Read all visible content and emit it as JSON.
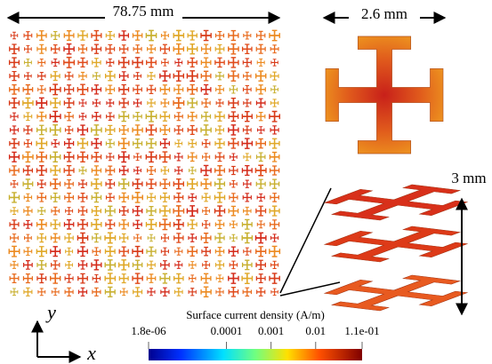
{
  "diagram": {
    "array_width": "78.75 mm",
    "cell_width": "2.6 mm",
    "stack_height": "3 mm",
    "axis_y": "y",
    "axis_x": "x"
  },
  "colorbar": {
    "title": "Surface current density (A/m)",
    "log": true,
    "lim": [
      1.8e-06,
      0.11
    ],
    "ticks": [
      {
        "value": 1.8e-06,
        "label": "1.8e-06"
      },
      0.0001,
      0.001,
      0.01,
      {
        "value": 0.11,
        "label": "1.1e-01"
      }
    ]
  }
}
